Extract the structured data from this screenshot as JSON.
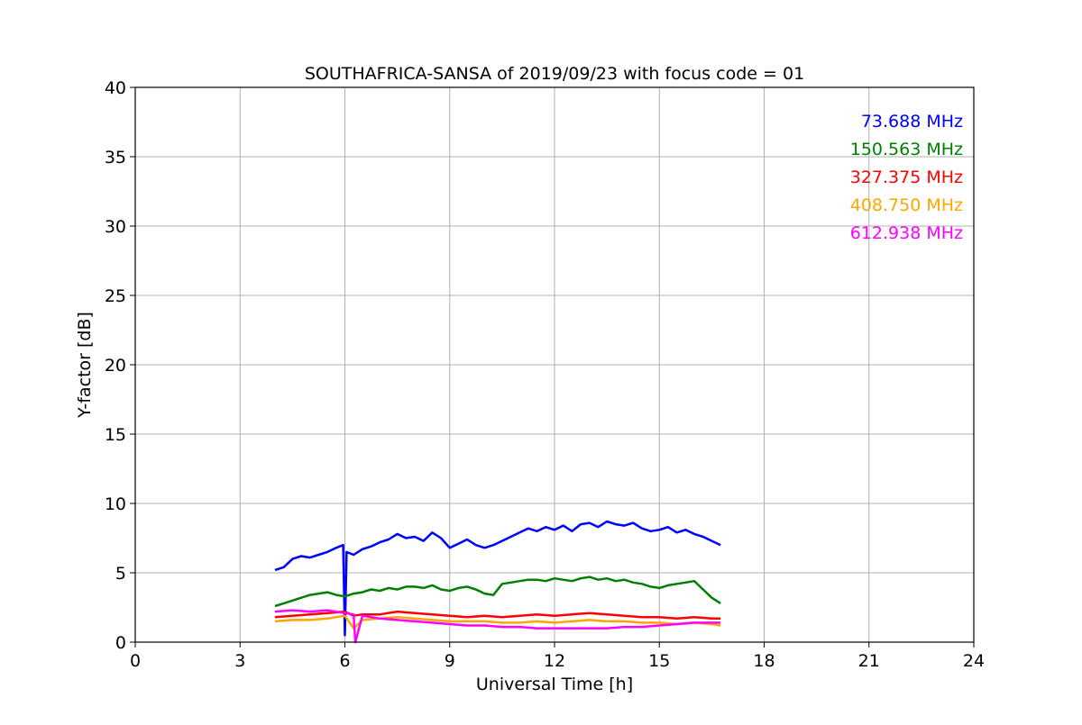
{
  "chart_data": {
    "type": "line",
    "title": "SOUTHAFRICA-SANSA of 2019/09/23 with focus code = 01",
    "xlabel": "Universal Time [h]",
    "ylabel": "Y-factor [dB]",
    "xlim": [
      0,
      24
    ],
    "ylim": [
      0,
      40
    ],
    "xticks": [
      0,
      3,
      6,
      9,
      12,
      15,
      18,
      21,
      24
    ],
    "yticks": [
      0,
      5,
      10,
      15,
      20,
      25,
      30,
      35,
      40
    ],
    "grid": true,
    "legend_position": "top-right",
    "series": [
      {
        "name": "73.688 MHz",
        "color": "#0000ff",
        "x": [
          4.0,
          4.25,
          4.5,
          4.75,
          5.0,
          5.25,
          5.5,
          5.75,
          5.95,
          6.0,
          6.05,
          6.25,
          6.5,
          6.75,
          7.0,
          7.25,
          7.5,
          7.75,
          8.0,
          8.25,
          8.5,
          8.75,
          9.0,
          9.25,
          9.5,
          9.75,
          10.0,
          10.25,
          10.5,
          10.75,
          11.0,
          11.25,
          11.5,
          11.75,
          12.0,
          12.25,
          12.5,
          12.75,
          13.0,
          13.25,
          13.5,
          13.75,
          14.0,
          14.25,
          14.5,
          14.75,
          15.0,
          15.25,
          15.5,
          15.75,
          16.0,
          16.25,
          16.5,
          16.75
        ],
        "y": [
          5.2,
          5.4,
          6.0,
          6.2,
          6.1,
          6.3,
          6.5,
          6.8,
          7.0,
          0.5,
          6.5,
          6.3,
          6.7,
          6.9,
          7.2,
          7.4,
          7.8,
          7.5,
          7.6,
          7.3,
          7.9,
          7.5,
          6.8,
          7.1,
          7.4,
          7.0,
          6.8,
          7.0,
          7.3,
          7.6,
          7.9,
          8.2,
          8.0,
          8.3,
          8.1,
          8.4,
          8.0,
          8.5,
          8.6,
          8.3,
          8.7,
          8.5,
          8.4,
          8.6,
          8.2,
          8.0,
          8.1,
          8.3,
          7.9,
          8.1,
          7.8,
          7.6,
          7.3,
          7.0
        ]
      },
      {
        "name": "150.563 MHz",
        "color": "#008000",
        "x": [
          4.0,
          4.25,
          4.5,
          4.75,
          5.0,
          5.25,
          5.5,
          5.75,
          6.0,
          6.25,
          6.5,
          6.75,
          7.0,
          7.25,
          7.5,
          7.75,
          8.0,
          8.25,
          8.5,
          8.75,
          9.0,
          9.25,
          9.5,
          9.75,
          10.0,
          10.25,
          10.5,
          10.75,
          11.0,
          11.25,
          11.5,
          11.75,
          12.0,
          12.25,
          12.5,
          12.75,
          13.0,
          13.25,
          13.5,
          13.75,
          14.0,
          14.25,
          14.5,
          14.75,
          15.0,
          15.25,
          15.5,
          15.75,
          16.0,
          16.25,
          16.5,
          16.75
        ],
        "y": [
          2.6,
          2.8,
          3.0,
          3.2,
          3.4,
          3.5,
          3.6,
          3.4,
          3.3,
          3.5,
          3.6,
          3.8,
          3.7,
          3.9,
          3.8,
          4.0,
          4.0,
          3.9,
          4.1,
          3.8,
          3.7,
          3.9,
          4.0,
          3.8,
          3.5,
          3.4,
          4.2,
          4.3,
          4.4,
          4.5,
          4.5,
          4.4,
          4.6,
          4.5,
          4.4,
          4.6,
          4.7,
          4.5,
          4.6,
          4.4,
          4.5,
          4.3,
          4.2,
          4.0,
          3.9,
          4.1,
          4.2,
          4.3,
          4.4,
          3.8,
          3.2,
          2.8
        ]
      },
      {
        "name": "327.375 MHz",
        "color": "#ff0000",
        "x": [
          4.0,
          4.5,
          5.0,
          5.5,
          6.0,
          6.25,
          6.5,
          7.0,
          7.5,
          8.0,
          8.5,
          9.0,
          9.5,
          10.0,
          10.5,
          11.0,
          11.5,
          12.0,
          12.5,
          13.0,
          13.5,
          14.0,
          14.5,
          15.0,
          15.5,
          16.0,
          16.5,
          16.75
        ],
        "y": [
          1.8,
          1.9,
          2.0,
          2.1,
          2.2,
          1.9,
          2.0,
          2.0,
          2.2,
          2.1,
          2.0,
          1.9,
          1.8,
          1.9,
          1.8,
          1.9,
          2.0,
          1.9,
          2.0,
          2.1,
          2.0,
          1.9,
          1.8,
          1.8,
          1.7,
          1.8,
          1.7,
          1.7
        ]
      },
      {
        "name": "408.750 MHz",
        "color": "#ffa500",
        "x": [
          4.0,
          4.5,
          5.0,
          5.5,
          6.0,
          6.25,
          6.5,
          7.0,
          7.5,
          8.0,
          8.5,
          9.0,
          9.5,
          10.0,
          10.5,
          11.0,
          11.5,
          12.0,
          12.5,
          13.0,
          13.5,
          14.0,
          14.5,
          15.0,
          15.5,
          16.0,
          16.5,
          16.75
        ],
        "y": [
          1.5,
          1.6,
          1.6,
          1.7,
          1.9,
          1.0,
          1.6,
          1.7,
          1.8,
          1.7,
          1.6,
          1.5,
          1.5,
          1.5,
          1.4,
          1.4,
          1.5,
          1.4,
          1.5,
          1.6,
          1.5,
          1.5,
          1.4,
          1.4,
          1.3,
          1.4,
          1.3,
          1.2
        ]
      },
      {
        "name": "612.938 MHz",
        "color": "#ff00ff",
        "x": [
          4.0,
          4.5,
          5.0,
          5.5,
          6.0,
          6.25,
          6.3,
          6.5,
          7.0,
          7.5,
          8.0,
          8.5,
          9.0,
          9.5,
          10.0,
          10.5,
          11.0,
          11.5,
          12.0,
          12.5,
          13.0,
          13.5,
          14.0,
          14.5,
          15.0,
          15.5,
          16.0,
          16.5,
          16.75
        ],
        "y": [
          2.2,
          2.3,
          2.2,
          2.3,
          2.1,
          2.0,
          0.0,
          1.9,
          1.7,
          1.6,
          1.5,
          1.4,
          1.3,
          1.2,
          1.2,
          1.1,
          1.1,
          1.0,
          1.0,
          1.0,
          1.0,
          1.0,
          1.1,
          1.1,
          1.2,
          1.3,
          1.4,
          1.4,
          1.4
        ]
      }
    ]
  }
}
